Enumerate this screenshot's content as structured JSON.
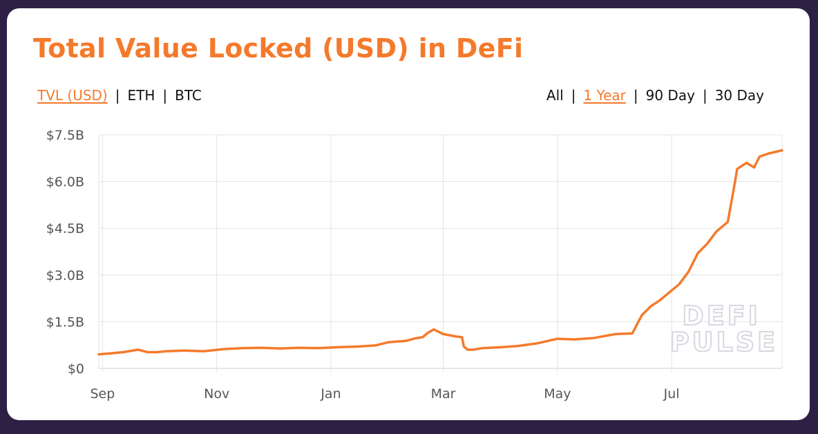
{
  "header": {
    "title": "Total Value Locked (USD) in DeFi"
  },
  "metric_tabs": [
    {
      "label": "TVL (USD)",
      "active": true
    },
    {
      "label": "ETH",
      "active": false
    },
    {
      "label": "BTC",
      "active": false
    }
  ],
  "range_tabs": [
    {
      "label": "All",
      "active": false
    },
    {
      "label": "1 Year",
      "active": true
    },
    {
      "label": "90 Day",
      "active": false
    },
    {
      "label": "30 Day",
      "active": false
    }
  ],
  "separator": "|",
  "watermark": {
    "line1": "DEFI",
    "line2": "PULSE"
  },
  "colors": {
    "accent": "#f47a2b",
    "background": "#2e1f45",
    "card": "#ffffff",
    "grid": "#e3e3e3",
    "axis_text": "#555555"
  },
  "chart_data": {
    "type": "line",
    "title": "Total Value Locked (USD) in DeFi",
    "xlabel": "",
    "ylabel": "",
    "grid": true,
    "y_tick_labels": [
      "$0",
      "$1.5B",
      "$3.0B",
      "$4.5B",
      "$6.0B",
      "$7.5B"
    ],
    "y_ticks": [
      0,
      1.5,
      3.0,
      4.5,
      6.0,
      7.5
    ],
    "ylim": [
      0,
      7.5
    ],
    "x_tick_labels": [
      "Sep",
      "Nov",
      "Jan",
      "Mar",
      "May",
      "Jul"
    ],
    "x_ticks": [
      "2019-09-01",
      "2019-11-01",
      "2020-01-01",
      "2020-03-01",
      "2020-05-01",
      "2020-07-01"
    ],
    "xlim": [
      "2019-08-30",
      "2020-08-29"
    ],
    "series": [
      {
        "color": "#f47a2b",
        "x": [
          "2019-08-30",
          "2019-09-05",
          "2019-09-12",
          "2019-09-20",
          "2019-09-25",
          "2019-09-30",
          "2019-10-05",
          "2019-10-15",
          "2019-10-25",
          "2019-11-05",
          "2019-11-15",
          "2019-11-25",
          "2019-12-05",
          "2019-12-15",
          "2019-12-25",
          "2020-01-05",
          "2020-01-15",
          "2020-01-25",
          "2020-02-01",
          "2020-02-10",
          "2020-02-15",
          "2020-02-19",
          "2020-02-22",
          "2020-02-25",
          "2020-03-01",
          "2020-03-08",
          "2020-03-11",
          "2020-03-12",
          "2020-03-14",
          "2020-03-17",
          "2020-03-22",
          "2020-04-01",
          "2020-04-10",
          "2020-04-20",
          "2020-05-01",
          "2020-05-10",
          "2020-05-20",
          "2020-06-01",
          "2020-06-10",
          "2020-06-15",
          "2020-06-20",
          "2020-06-25",
          "2020-07-01",
          "2020-07-05",
          "2020-07-10",
          "2020-07-15",
          "2020-07-20",
          "2020-07-25",
          "2020-07-31",
          "2020-08-03",
          "2020-08-05",
          "2020-08-10",
          "2020-08-14",
          "2020-08-17",
          "2020-08-22",
          "2020-08-29"
        ],
        "y": [
          0.45,
          0.48,
          0.52,
          0.6,
          0.52,
          0.52,
          0.55,
          0.57,
          0.55,
          0.62,
          0.65,
          0.66,
          0.64,
          0.66,
          0.65,
          0.68,
          0.7,
          0.74,
          0.84,
          0.88,
          0.96,
          1.0,
          1.15,
          1.25,
          1.1,
          1.02,
          1.0,
          0.7,
          0.6,
          0.6,
          0.65,
          0.68,
          0.72,
          0.8,
          0.95,
          0.93,
          0.97,
          1.1,
          1.12,
          1.7,
          2.0,
          2.2,
          2.5,
          2.7,
          3.1,
          3.7,
          4.0,
          4.4,
          4.7,
          5.7,
          6.4,
          6.6,
          6.45,
          6.8,
          6.9,
          7.0
        ]
      }
    ]
  }
}
